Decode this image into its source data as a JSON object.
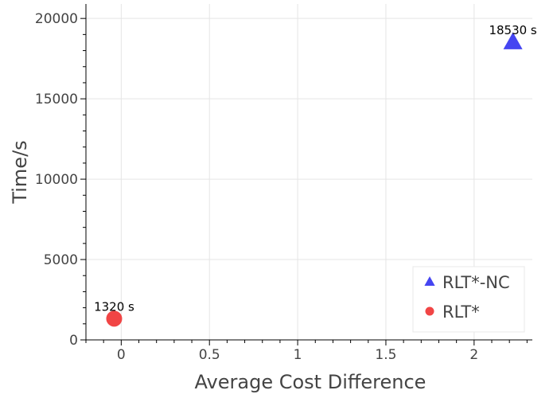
{
  "chart_data": {
    "type": "scatter",
    "xlabel": "Average Cost Difference",
    "ylabel": "Time/s",
    "xlim": [
      -0.2,
      2.33
    ],
    "ylim": [
      0,
      20900
    ],
    "xticks": [
      0,
      0.5,
      1,
      1.5,
      2
    ],
    "xtick_labels": [
      "0",
      "0.5",
      "1",
      "1.5",
      "2"
    ],
    "yticks": [
      0,
      5000,
      10000,
      15000,
      20000
    ],
    "ytick_labels": [
      "0",
      "5000",
      "10000",
      "15000",
      "20000"
    ],
    "grid": true,
    "legend_position": "bottom-right",
    "series": [
      {
        "name": "RLT*-NC",
        "marker": "triangle",
        "color": "#3b3bf0",
        "x": [
          2.22
        ],
        "y": [
          18530
        ],
        "labels": [
          "18530 s"
        ]
      },
      {
        "name": "RLT*",
        "marker": "circle",
        "color": "#f03b3b",
        "x": [
          -0.04
        ],
        "y": [
          1320
        ],
        "labels": [
          "1320 s"
        ]
      }
    ]
  }
}
